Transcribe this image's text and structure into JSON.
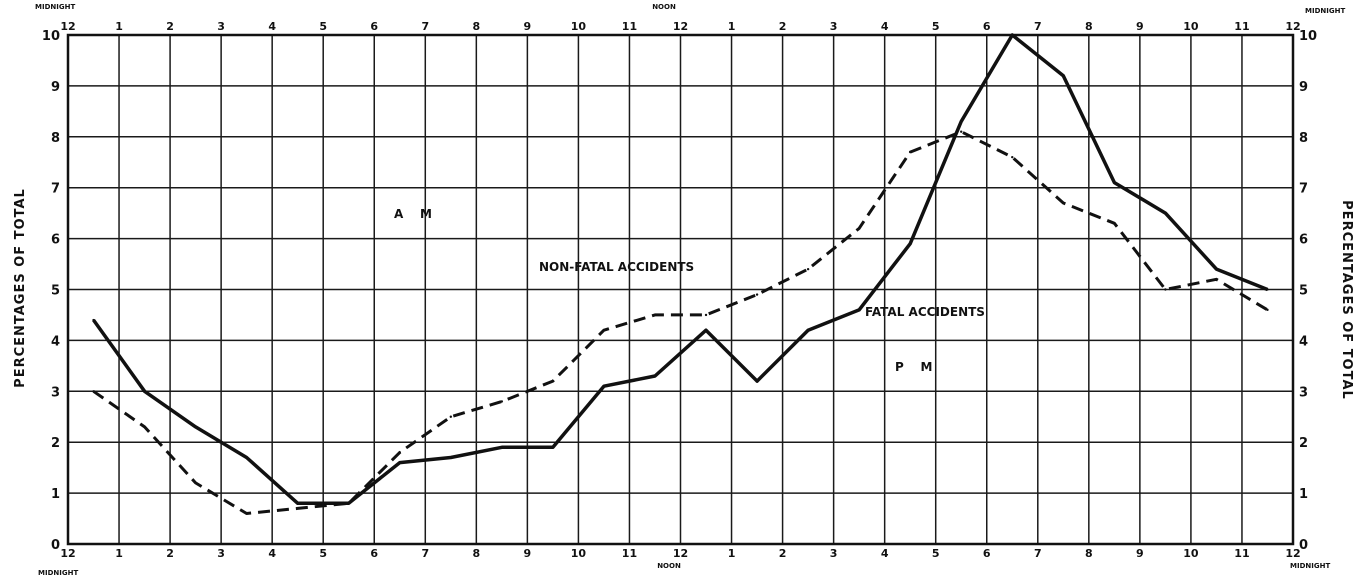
{
  "chart_data": {
    "type": "line",
    "title": "",
    "x": [
      0.5,
      1.5,
      2.5,
      3.5,
      4.5,
      5.5,
      6.5,
      7.5,
      8.5,
      9.5,
      10.5,
      11.5,
      12.5,
      13.5,
      14.5,
      15.5,
      16.5,
      17.5,
      18.5,
      19.5,
      20.5,
      21.5,
      22.5,
      23.5
    ],
    "series": [
      {
        "name": "FATAL ACCIDENTS",
        "style": "solid",
        "values": [
          4.4,
          3.0,
          2.3,
          1.7,
          0.8,
          0.8,
          1.6,
          1.7,
          1.9,
          1.9,
          3.1,
          3.3,
          4.2,
          3.2,
          4.2,
          4.6,
          5.9,
          8.3,
          10.0,
          9.2,
          7.1,
          6.5,
          5.4,
          5.0
        ]
      },
      {
        "name": "NON-FATAL ACCIDENTS",
        "style": "dashed",
        "values": [
          3.0,
          2.3,
          1.2,
          0.6,
          0.7,
          0.8,
          1.8,
          2.5,
          2.8,
          3.2,
          4.2,
          4.5,
          4.5,
          4.9,
          5.4,
          6.2,
          7.7,
          8.1,
          7.6,
          6.7,
          6.3,
          5.0,
          5.2,
          4.6
        ]
      }
    ],
    "x_tick_labels": [
      "12",
      "1",
      "2",
      "3",
      "4",
      "5",
      "6",
      "7",
      "8",
      "9",
      "10",
      "11",
      "12",
      "1",
      "2",
      "3",
      "4",
      "5",
      "6",
      "7",
      "8",
      "9",
      "10",
      "11",
      "12"
    ],
    "y_ticks": [
      "0",
      "1",
      "2",
      "3",
      "4",
      "5",
      "6",
      "7",
      "8",
      "9",
      "10"
    ],
    "xlim": [
      0,
      24
    ],
    "ylim": [
      0,
      10
    ],
    "ylabel_left": "PERCENTAGES OF TOTAL",
    "ylabel_right": "PERCENTAGES OF TOTAL",
    "top_labels": {
      "left": "MIDNIGHT",
      "center": "NOON",
      "right": "MIDNIGHT"
    },
    "bottom_labels": {
      "left": "MIDNIGHT",
      "center": "NOON",
      "right": "MIDNIGHT"
    },
    "annotations": {
      "am": "A    M",
      "pm": "P    M",
      "non_fatal": "NON-FATAL ACCIDENTS",
      "fatal": "FATAL ACCIDENTS"
    },
    "grid": true,
    "colors": {
      "line": "#111111",
      "grid": "#1a1a1a",
      "background": "#ffffff"
    }
  }
}
